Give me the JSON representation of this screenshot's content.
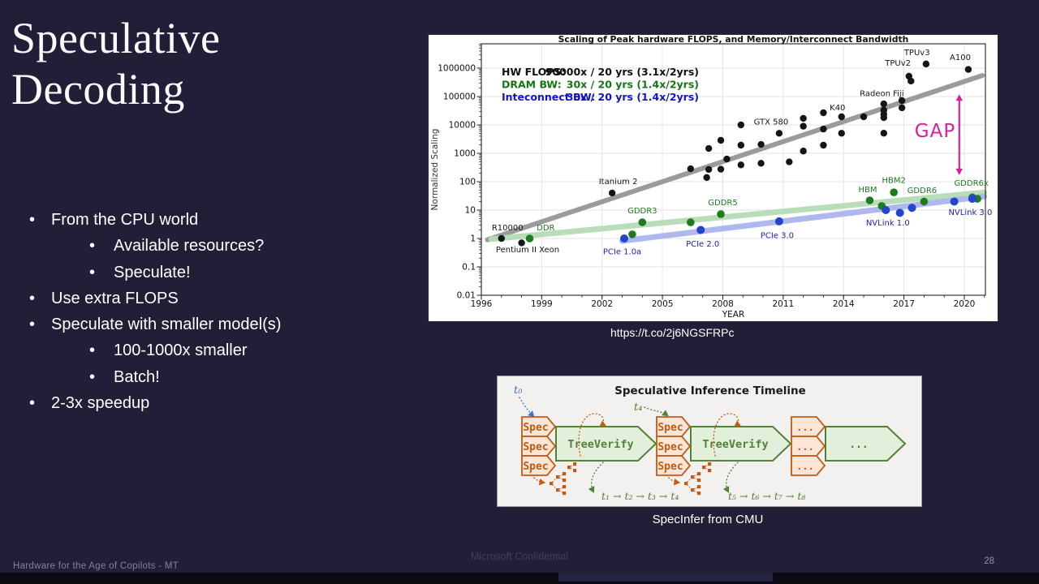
{
  "slide": {
    "title": "Speculative Decoding",
    "bullets": [
      {
        "level": 1,
        "text": "From the CPU world"
      },
      {
        "level": 2,
        "text": "Available resources?"
      },
      {
        "level": 2,
        "text": "Speculate!"
      },
      {
        "level": 1,
        "text": "Use extra FLOPS"
      },
      {
        "level": 1,
        "text": "Speculate with smaller model(s)"
      },
      {
        "level": 2,
        "text": "100-1000x smaller"
      },
      {
        "level": 2,
        "text": "Batch!"
      },
      {
        "level": 1,
        "text": "2-3x speedup"
      }
    ],
    "chart_caption": "https://t.co/2j6NGSFRPc",
    "diagram_caption": "SpecInfer from CMU",
    "footer_left": "Hardware for the Age of Copilots - MT",
    "footer_center": "Microsoft Confidential",
    "page_number": "28"
  },
  "chart_data": {
    "type": "scatter",
    "title": "Scaling of Peak hardware FLOPS, and Memory/Interconnect Bandwidth",
    "xlabel": "YEAR",
    "ylabel": "Normalized Scaling",
    "x_ticks": [
      1996,
      1999,
      2002,
      2005,
      2008,
      2011,
      2014,
      2017,
      2020
    ],
    "y_ticks": [
      0.01,
      0.1,
      1,
      10,
      100,
      1000,
      10000,
      100000,
      1000000
    ],
    "xlim": [
      1996,
      2021.05
    ],
    "ylim_log": [
      -2,
      6.857
    ],
    "grid": true,
    "legend_position": "top-left",
    "legend": [
      {
        "label": "HW FLOPS:",
        "value": "90000x / 20 yrs (3.1x/2yrs)",
        "color": "#111111"
      },
      {
        "label": "DRAM BW:",
        "value": "30x / 20 yrs (1.4x/2yrs)",
        "color": "#137813"
      },
      {
        "label": "Inteconnect BW:",
        "value": "30x / 20 yrs (1.4x/2yrs)",
        "color": "#1414cc"
      }
    ],
    "series": [
      {
        "name": "HW FLOPS",
        "color": "#151515",
        "r": 4.2,
        "trend": {
          "x1": 1996.3,
          "v1": 0.9,
          "x2": 2020.9,
          "v2": 550000,
          "color": "#9b9b9b",
          "width": 6,
          "opacity": 1
        },
        "points": [
          [
            1997,
            1
          ],
          [
            1998,
            0.7
          ],
          [
            2002.5,
            40
          ],
          [
            2006.4,
            285
          ],
          [
            2007.2,
            140
          ],
          [
            2007.3,
            1480
          ],
          [
            2007.3,
            270
          ],
          [
            2007.9,
            2870
          ],
          [
            2007.9,
            276
          ],
          [
            2008.2,
            630
          ],
          [
            2008.9,
            10000
          ],
          [
            2008.9,
            1930
          ],
          [
            2008.9,
            390
          ],
          [
            2009.9,
            2050
          ],
          [
            2009.9,
            444
          ],
          [
            2010.8,
            5080
          ],
          [
            2011.3,
            500
          ],
          [
            2012.0,
            17000
          ],
          [
            2012.0,
            9000
          ],
          [
            2012.0,
            1200
          ],
          [
            2013.0,
            26800
          ],
          [
            2013.0,
            7150
          ],
          [
            2013.0,
            1930
          ],
          [
            2013.9,
            19300
          ],
          [
            2013.9,
            5080
          ],
          [
            2015.0,
            19300
          ],
          [
            2016.0,
            55000
          ],
          [
            2016.0,
            33000
          ],
          [
            2016.0,
            24000
          ],
          [
            2016.0,
            18000
          ],
          [
            2016.0,
            5100
          ],
          [
            2016.9,
            72000
          ],
          [
            2016.9,
            40000
          ],
          [
            2017.25,
            520000
          ],
          [
            2017.35,
            350000
          ],
          [
            2018.1,
            1400000
          ],
          [
            2020.2,
            900000
          ]
        ]
      },
      {
        "name": "DRAM BW",
        "color": "#1e7b1e",
        "r": 4.8,
        "trend": {
          "x1": 1996.5,
          "v1": 0.95,
          "x2": 2021,
          "v2": 42,
          "color": "#b6dcb6",
          "width": 7,
          "opacity": 0.95
        },
        "points": [
          [
            1998.4,
            1
          ],
          [
            2003.5,
            1.4
          ],
          [
            2004.0,
            3.7
          ],
          [
            2006.4,
            3.7
          ],
          [
            2007.9,
            7.2
          ],
          [
            2015.3,
            22
          ],
          [
            2015.9,
            14
          ],
          [
            2016.5,
            42
          ],
          [
            2018.0,
            20
          ],
          [
            2020.4,
            28
          ],
          [
            2020.65,
            25
          ]
        ]
      },
      {
        "name": "Interconnect BW",
        "color": "#2145cf",
        "r": 5,
        "trend": {
          "x1": 2003.0,
          "v1": 0.82,
          "x2": 2021,
          "v2": 30,
          "color": "#abb5ec",
          "width": 7,
          "opacity": 0.95
        },
        "points": [
          [
            2003.1,
            1
          ],
          [
            2006.9,
            2
          ],
          [
            2010.8,
            4
          ],
          [
            2016.1,
            10
          ],
          [
            2016.8,
            8
          ],
          [
            2017.4,
            12
          ],
          [
            2019.5,
            20
          ],
          [
            2020.4,
            25
          ]
        ]
      }
    ],
    "point_labels": [
      {
        "t": "R10000",
        "x": 1997.3,
        "v": 1.9,
        "c": "#151515",
        "a": "m"
      },
      {
        "t": "DDR",
        "x": 1999.2,
        "v": 1.9,
        "c": "#1e7b1e",
        "a": "m"
      },
      {
        "t": "Pentium II Xeon",
        "x": 1998.3,
        "v": 0.33,
        "c": "#151515",
        "a": "m"
      },
      {
        "t": "Itanium 2",
        "x": 2002.8,
        "v": 82,
        "c": "#151515",
        "a": "m"
      },
      {
        "t": "GTX 580",
        "x": 2010.4,
        "v": 10400,
        "c": "#151515",
        "a": "m"
      },
      {
        "t": "K40",
        "x": 2013.7,
        "v": 33000,
        "c": "#151515",
        "a": "m"
      },
      {
        "t": "Radeon Fiji",
        "x": 2015.9,
        "v": 105000,
        "c": "#151515",
        "a": "m"
      },
      {
        "t": "TPUv2",
        "x": 2016.7,
        "v": 1200000,
        "c": "#151515",
        "a": "m"
      },
      {
        "t": "TPUv3",
        "x": 2017.65,
        "v": 2860000,
        "c": "#151515",
        "a": "m"
      },
      {
        "t": "A100",
        "x": 2019.8,
        "v": 1900000,
        "c": "#151515",
        "a": "m"
      },
      {
        "t": "GDDR3",
        "x": 2004.0,
        "v": 7.7,
        "c": "#1e7b1e",
        "a": "m"
      },
      {
        "t": "GDDR5",
        "x": 2008.0,
        "v": 15,
        "c": "#1e7b1e",
        "a": "m"
      },
      {
        "t": "HBM",
        "x": 2015.2,
        "v": 42,
        "c": "#1e7b1e",
        "a": "m"
      },
      {
        "t": "HBM2",
        "x": 2016.5,
        "v": 92,
        "c": "#1e7b1e",
        "a": "m"
      },
      {
        "t": "GDDR6",
        "x": 2017.9,
        "v": 40,
        "c": "#1e7b1e",
        "a": "m"
      },
      {
        "t": "GDDR6x",
        "x": 2020.35,
        "v": 72,
        "c": "#1e7b1e",
        "a": "m"
      },
      {
        "t": "PCIe 1.0a",
        "x": 2003.0,
        "v": 0.28,
        "c": "#2222aa",
        "a": "m"
      },
      {
        "t": "PCIe 2.0",
        "x": 2007.0,
        "v": 0.52,
        "c": "#2222aa",
        "a": "m"
      },
      {
        "t": "PCIe 3.0",
        "x": 2010.7,
        "v": 1.05,
        "c": "#2222aa",
        "a": "m"
      },
      {
        "t": "NVLink 1.0",
        "x": 2016.2,
        "v": 2.9,
        "c": "#2222aa",
        "a": "m"
      },
      {
        "t": "NVLink 3.0",
        "x": 2020.3,
        "v": 6.7,
        "c": "#2222aa",
        "a": "m"
      }
    ],
    "gap_annotation": {
      "text": "GAP",
      "color": "#d6219c",
      "x_text": 2018.55,
      "v_text": 3700,
      "x_arrow": 2019.75,
      "v_top": 120000,
      "v_bottom": 170
    }
  },
  "diagram": {
    "title": "Speculative Inference Timeline",
    "labels": {
      "t0": "t₀",
      "t4": "t₄",
      "spec": "Spec",
      "verify": "TreeVerify",
      "dots": "...",
      "seq1": "t₁ → t₂ → t₃ → t₄",
      "seq2": "t₅ → t₆ → t₇ → t₈"
    },
    "colors": {
      "orange": "#C55A11",
      "orange_fill": "#FBE5D6",
      "green": "#538135",
      "green_fill": "#E2EFDA",
      "blue": "#4472C4",
      "title": "#1a1a1a",
      "bg": "#F2F1EF"
    }
  }
}
